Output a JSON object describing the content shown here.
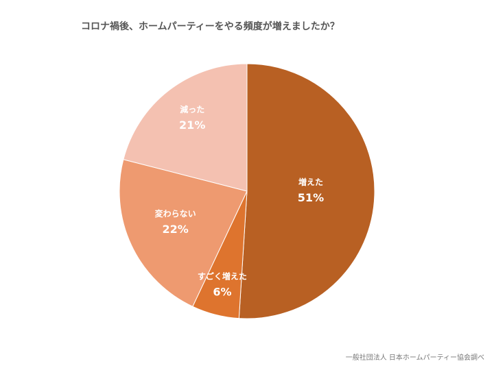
{
  "chart_data": {
    "type": "pie",
    "title": "コロナ禍後、ホームパーティーをやる頻度が増えましたか？",
    "start_angle": "12 o'clock",
    "direction": "clockwise",
    "slices": [
      {
        "label": "増えた",
        "value": 51,
        "value_label": "51%",
        "color": "#B86023"
      },
      {
        "label": "すごく増えた",
        "value": 6,
        "value_label": "6%",
        "color": "#DE742E"
      },
      {
        "label": "変わらない",
        "value": 22,
        "value_label": "22%",
        "color": "#EE9A70"
      },
      {
        "label": "減った",
        "value": 21,
        "value_label": "21%",
        "color": "#F4C1B1"
      }
    ],
    "source": "一般社団法人 日本ホームパーティー協会調べ"
  }
}
